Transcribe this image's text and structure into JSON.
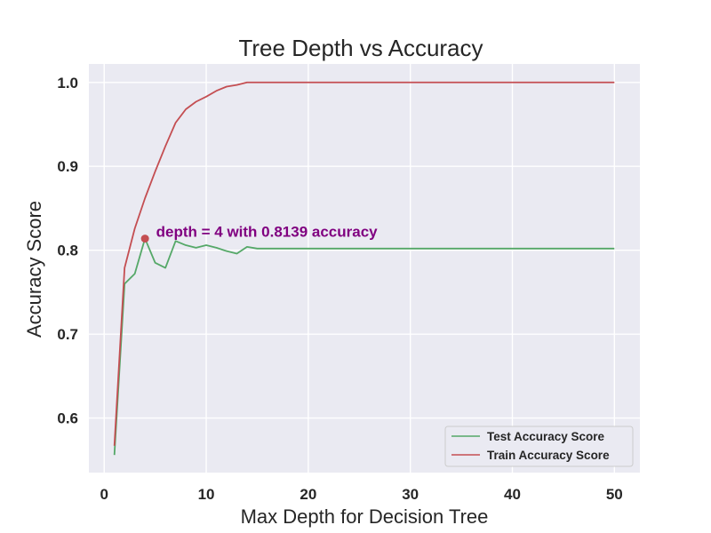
{
  "chart_data": {
    "type": "line",
    "title": "Tree Depth vs Accuracy",
    "xlabel": "Max Depth for Decision Tree",
    "ylabel": "Accuracy Score",
    "xlim": [
      -1.5,
      52.5
    ],
    "ylim": [
      0.535,
      1.022
    ],
    "xticks": [
      0,
      10,
      20,
      30,
      40,
      50
    ],
    "yticks": [
      0.6,
      0.7,
      0.8,
      0.9,
      1.0
    ],
    "xtick_labels": [
      "0",
      "10",
      "20",
      "30",
      "40",
      "50"
    ],
    "ytick_labels": [
      "0.6",
      "0.7",
      "0.8",
      "0.9",
      "1.0"
    ],
    "grid": true,
    "background": "#eaeaf2",
    "x": [
      1,
      2,
      3,
      4,
      5,
      6,
      7,
      8,
      9,
      10,
      11,
      12,
      13,
      14,
      15,
      16,
      17,
      18,
      19,
      20,
      21,
      22,
      23,
      24,
      25,
      26,
      27,
      28,
      29,
      30,
      31,
      32,
      33,
      34,
      35,
      36,
      37,
      38,
      39,
      40,
      41,
      42,
      43,
      44,
      45,
      46,
      47,
      48,
      49,
      50
    ],
    "series": [
      {
        "name": "Test Accuracy Score",
        "color": "#55a868",
        "values": [
          0.556,
          0.76,
          0.772,
          0.8139,
          0.785,
          0.779,
          0.811,
          0.806,
          0.803,
          0.806,
          0.803,
          0.799,
          0.796,
          0.804,
          0.802,
          0.802,
          0.802,
          0.802,
          0.802,
          0.802,
          0.802,
          0.802,
          0.802,
          0.802,
          0.802,
          0.802,
          0.802,
          0.802,
          0.802,
          0.802,
          0.802,
          0.802,
          0.802,
          0.802,
          0.802,
          0.802,
          0.802,
          0.802,
          0.802,
          0.802,
          0.802,
          0.802,
          0.802,
          0.802,
          0.802,
          0.802,
          0.802,
          0.802,
          0.802,
          0.802
        ]
      },
      {
        "name": "Train Accuracy Score",
        "color": "#c44e52",
        "values": [
          0.567,
          0.779,
          0.826,
          0.862,
          0.894,
          0.924,
          0.952,
          0.968,
          0.977,
          0.983,
          0.99,
          0.995,
          0.997,
          1.0,
          1.0,
          1.0,
          1.0,
          1.0,
          1.0,
          1.0,
          1.0,
          1.0,
          1.0,
          1.0,
          1.0,
          1.0,
          1.0,
          1.0,
          1.0,
          1.0,
          1.0,
          1.0,
          1.0,
          1.0,
          1.0,
          1.0,
          1.0,
          1.0,
          1.0,
          1.0,
          1.0,
          1.0,
          1.0,
          1.0,
          1.0,
          1.0,
          1.0,
          1.0,
          1.0,
          1.0
        ]
      }
    ],
    "highlight_point": {
      "x": 4,
      "y": 0.8139,
      "color": "#c44e52"
    },
    "annotation": {
      "text": "depth = 4 with 0.8139 accuracy",
      "x": 5,
      "y": 0.8139,
      "color": "#800080"
    },
    "legend": {
      "position": "lower-right"
    }
  }
}
